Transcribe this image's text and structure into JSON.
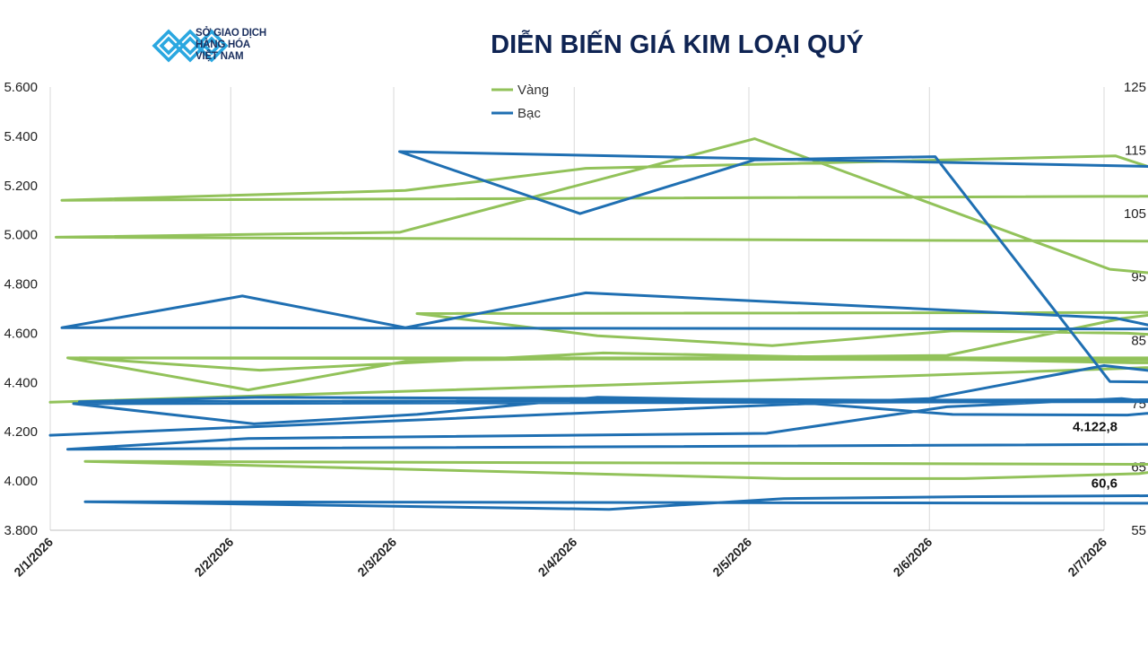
{
  "header": {
    "logo_lines": [
      "SỞ GIAO DỊCH",
      "HÀNG HÓA",
      "VIỆT NAM"
    ],
    "title": "DIỄN BIẾN GIÁ KIM LOẠI QUÝ"
  },
  "colors": {
    "vang": "#92c25a",
    "bac": "#1f6fb2",
    "title": "#0f2453",
    "logo": "#2aa7e0"
  },
  "chart_data": {
    "type": "line",
    "left_axis": {
      "min": 3800,
      "max": 5600,
      "step": 200,
      "tick_labels": [
        "3.800",
        "4.000",
        "4.200",
        "4.400",
        "4.600",
        "4.800",
        "5.000",
        "5.200",
        "5.400",
        "5.600"
      ]
    },
    "right_axis": {
      "min": 55,
      "max": 125,
      "step": 10,
      "tick_labels": [
        "55",
        "65",
        "75",
        "85",
        "95",
        "105",
        "115",
        "125"
      ]
    },
    "x_ticks": [
      "2/1/2026",
      "2/2/2026",
      "2/3/2026",
      "2/4/2026",
      "2/5/2026",
      "2/6/2026",
      "2/7/2026"
    ],
    "grid": "vertical",
    "legend_position": "top-center",
    "series": [
      {
        "name": "Vàng",
        "axis": "left",
        "color": "#92c25a",
        "end_label": "4.122,8",
        "points": [
          [
            "2/1/2026",
            4320
          ],
          [
            "2/6/2026",
            4430
          ],
          [
            "2/8/2026",
            4480
          ],
          [
            "2/10/2026",
            4450
          ],
          [
            "2/15/2026",
            4590
          ],
          [
            "2/17/2026",
            4610
          ],
          [
            "2/19/2026",
            4600
          ],
          [
            "2/21/2026",
            4640
          ],
          [
            "2/25/2026",
            4770
          ],
          [
            "2/28/2026",
            4920
          ],
          [
            "3/1/2026",
            4990
          ],
          [
            "3/3/2026",
            5010
          ],
          [
            "3/5/2026",
            5390
          ],
          [
            "3/7/2026",
            4860
          ],
          [
            "3/10/2026",
            4660
          ],
          [
            "3/11/2026",
            4930
          ],
          [
            "3/12/2026",
            4950
          ],
          [
            "3/13/2026",
            4770
          ],
          [
            "3/14/2026",
            4970
          ],
          [
            "3/18/2026",
            5060
          ],
          [
            "3/19/2026",
            5030
          ],
          [
            "3/20/2026",
            5070
          ],
          [
            "3/21/2026",
            4920
          ],
          [
            "3/22/2026",
            5030
          ],
          [
            "3/25/2026",
            4860
          ],
          [
            "3/26/2026",
            4980
          ],
          [
            "3/27/2026",
            5000
          ],
          [
            "3/28/2026",
            5090
          ],
          [
            "3/31/2026",
            5220
          ],
          [
            "4/1/2026",
            5140
          ],
          [
            "4/3/2026",
            5180
          ],
          [
            "4/4/2026",
            5270
          ],
          [
            "4/7/2026",
            5320
          ],
          [
            "4/8/2026",
            5080
          ],
          [
            "4/9/2026",
            5130
          ],
          [
            "4/10/2026",
            5070
          ],
          [
            "4/11/2026",
            5170
          ],
          [
            "4/14/2026",
            5140
          ],
          [
            "4/15/2026",
            5190
          ],
          [
            "4/16/2026",
            5170
          ],
          [
            "4/18/2026",
            5020
          ],
          [
            "4/22/2026",
            5010
          ],
          [
            "4/24/2026",
            4810
          ],
          [
            "4/26/2026",
            4480
          ],
          [
            "4/29/2026",
            4410
          ],
          [
            "4/30/2026",
            4460
          ],
          [
            "5/1/2026",
            4500
          ],
          [
            "5/2/2026",
            4370
          ],
          [
            "5/3/2026",
            4490
          ],
          [
            "5/6/2026",
            4510
          ],
          [
            "5/7/2026",
            4660
          ],
          [
            "5/8/2026",
            4750
          ],
          [
            "5/9/2026",
            4680
          ],
          [
            "5/13/2026",
            4650
          ],
          [
            "5/14/2026",
            4700
          ],
          [
            "5/15/2026",
            4720
          ],
          [
            "5/16/2026",
            4760
          ],
          [
            "5/17/2026",
            4740
          ],
          [
            "5/20/2026",
            4740
          ],
          [
            "5/21/2026",
            4830
          ],
          [
            "5/22/2026",
            4780
          ],
          [
            "5/23/2026",
            4790
          ],
          [
            "5/24/2026",
            4820
          ],
          [
            "5/27/2026",
            4820
          ],
          [
            "5/28/2026",
            4700
          ],
          [
            "5/29/2026",
            4730
          ],
          [
            "5/30/2026",
            4690
          ],
          [
            "5/31/2026",
            4710
          ],
          [
            "6/3/2026",
            4680
          ],
          [
            "6/4/2026",
            4590
          ],
          [
            "6/5/2026",
            4550
          ],
          [
            "6/6/2026",
            4610
          ],
          [
            "6/7/2026",
            4600
          ],
          [
            "6/9/2026",
            4520
          ],
          [
            "6/10/2026",
            4550
          ],
          [
            "6/11/2026",
            4680
          ],
          [
            "6/12/2026",
            4680
          ],
          [
            "6/13/2026",
            4710
          ],
          [
            "6/16/2026",
            4730
          ],
          [
            "6/18/2026",
            4680
          ],
          [
            "6/19/2026",
            4610
          ],
          [
            "6/20/2026",
            4530
          ],
          [
            "6/23/2026",
            4560
          ],
          [
            "6/24/2026",
            4470
          ],
          [
            "6/25/2026",
            4540
          ],
          [
            "6/26/2026",
            4540
          ],
          [
            "6/27/2026",
            4500
          ],
          [
            "7/1/2026",
            4500
          ],
          [
            "7/2/2026",
            4450
          ],
          [
            "7/4/2026",
            4520
          ],
          [
            "7/7/2026",
            4480
          ],
          [
            "7/8/2026",
            4480
          ],
          [
            "7/9/2026",
            4420
          ],
          [
            "7/10/2026",
            4470
          ],
          [
            "7/11/2026",
            4330
          ],
          [
            "7/14/2026",
            4330
          ],
          [
            "7/15/2026",
            4260
          ],
          [
            "7/16/2026",
            4060
          ],
          [
            "7/17/2026",
            4200
          ],
          [
            "7/18/2026",
            4210
          ],
          [
            "7/22/2026",
            4320
          ],
          [
            "7/23/2026",
            4250
          ],
          [
            "7/24/2026",
            4220
          ],
          [
            "7/25/2026",
            4150
          ],
          [
            "7/28/2026",
            4190
          ],
          [
            "7/30/2026",
            3990
          ],
          [
            "7/31/2026",
            4020
          ],
          [
            "8/1/2026",
            4080
          ],
          [
            "8/5/2026",
            4010
          ],
          [
            "8/6/2026",
            4010
          ],
          [
            "8/7/2026",
            4030
          ],
          [
            "8/8/2026",
            4122.8
          ]
        ]
      },
      {
        "name": "Bạc",
        "axis": "right",
        "color": "#1f6fb2",
        "end_label": "60,6",
        "points": [
          [
            "2/1/2026",
            70
          ],
          [
            "2/6/2026",
            75.8
          ],
          [
            "2/7/2026",
            81
          ],
          [
            "2/9/2026",
            74.8
          ],
          [
            "2/10/2026",
            79
          ],
          [
            "2/15/2026",
            84.8
          ],
          [
            "2/16/2026",
            85.5
          ],
          [
            "2/17/2026",
            90.5
          ],
          [
            "2/18/2026",
            91.5
          ],
          [
            "2/19/2026",
            87.5
          ],
          [
            "2/24/2026",
            93.5
          ],
          [
            "2/25/2026",
            92
          ],
          [
            "2/28/2026",
            101
          ],
          [
            "3/3/2026",
            114.8
          ],
          [
            "3/4/2026",
            105
          ],
          [
            "3/5/2026",
            113.5
          ],
          [
            "3/6/2026",
            114
          ],
          [
            "3/7/2026",
            78.5
          ],
          [
            "3/10/2026",
            77.5
          ],
          [
            "3/11/2026",
            82.5
          ],
          [
            "3/12/2026",
            83.5
          ],
          [
            "3/13/2026",
            76.5
          ],
          [
            "3/14/2026",
            76.8
          ],
          [
            "3/18/2026",
            81.5
          ],
          [
            "3/19/2026",
            79.5
          ],
          [
            "3/20/2026",
            83.5
          ],
          [
            "3/21/2026",
            75.5
          ],
          [
            "3/22/2026",
            78
          ],
          [
            "3/25/2026",
            74
          ],
          [
            "3/26/2026",
            77.5
          ],
          [
            "3/27/2026",
            77.5
          ],
          [
            "3/28/2026",
            82
          ],
          [
            "3/31/2026",
            86
          ],
          [
            "4/1/2026",
            87
          ],
          [
            "4/2/2026",
            92
          ],
          [
            "4/3/2026",
            87
          ],
          [
            "4/4/2026",
            92.5
          ],
          [
            "4/7/2026",
            88.5
          ],
          [
            "4/8/2026",
            82.5
          ],
          [
            "4/9/2026",
            82.3
          ],
          [
            "4/10/2026",
            81.5
          ],
          [
            "4/11/2026",
            83.8
          ],
          [
            "4/14/2026",
            84
          ],
          [
            "4/15/2026",
            89
          ],
          [
            "4/16/2026",
            85
          ],
          [
            "4/17/2026",
            84.8
          ],
          [
            "4/18/2026",
            80.5
          ],
          [
            "4/22/2026",
            79.8
          ],
          [
            "4/23/2026",
            77.5
          ],
          [
            "4/24/2026",
            71.5
          ],
          [
            "4/25/2026",
            69.3
          ],
          [
            "4/28/2026",
            69
          ],
          [
            "4/29/2026",
            69.2
          ],
          [
            "4/30/2026",
            71.5
          ],
          [
            "5/1/2026",
            67.8
          ],
          [
            "5/2/2026",
            69.5
          ],
          [
            "5/5/2026",
            70.3
          ],
          [
            "5/6/2026",
            74.5
          ],
          [
            "5/7/2026",
            75.8
          ],
          [
            "5/8/2026",
            72.8
          ],
          [
            "5/12/2026",
            72.7
          ],
          [
            "5/13/2026",
            72
          ],
          [
            "5/14/2026",
            75
          ],
          [
            "5/15/2026",
            76
          ],
          [
            "5/18/2026",
            75.3
          ],
          [
            "5/19/2026",
            79.5
          ],
          [
            "5/20/2026",
            79.5
          ],
          [
            "5/21/2026",
            78.5
          ],
          [
            "5/22/2026",
            81.5
          ],
          [
            "5/25/2026",
            79.8
          ],
          [
            "5/26/2026",
            76.3
          ],
          [
            "5/27/2026",
            77.8
          ],
          [
            "5/28/2026",
            75.5
          ],
          [
            "5/29/2026",
            76.5
          ],
          [
            "6/1/2026",
            75
          ],
          [
            "6/2/2026",
            71.8
          ],
          [
            "6/3/2026",
            73.3
          ],
          [
            "6/4/2026",
            76
          ],
          [
            "6/5/2026",
            75.5
          ],
          [
            "6/6/2026",
            73.3
          ],
          [
            "6/7/2026",
            73.2
          ],
          [
            "6/10/2026",
            80.3
          ],
          [
            "6/11/2026",
            80.8
          ],
          [
            "6/14/2026",
            85.3
          ],
          [
            "6/15/2026",
            85.2
          ],
          [
            "6/16/2026",
            89
          ],
          [
            "6/18/2026",
            78
          ],
          [
            "6/21/2026",
            77.8
          ],
          [
            "6/22/2026",
            75.3
          ],
          [
            "6/23/2026",
            76.5
          ],
          [
            "6/24/2026",
            77
          ],
          [
            "6/25/2026",
            76.2
          ],
          [
            "6/30/2026",
            76.8
          ],
          [
            "7/1/2026",
            75.3
          ],
          [
            "7/2/2026",
            76
          ],
          [
            "7/4/2026",
            75.8
          ],
          [
            "7/7/2026",
            75.3
          ],
          [
            "7/8/2026",
            75.5
          ],
          [
            "7/9/2026",
            73.5
          ],
          [
            "7/10/2026",
            73.8
          ],
          [
            "7/11/2026",
            68.8
          ],
          [
            "7/14/2026",
            68.3
          ],
          [
            "7/15/2026",
            64.8
          ],
          [
            "7/17/2026",
            63.5
          ],
          [
            "7/18/2026",
            67.5
          ],
          [
            "7/21/2026",
            70
          ],
          [
            "7/22/2026",
            70
          ],
          [
            "7/23/2026",
            70.5
          ],
          [
            "7/24/2026",
            66.5
          ],
          [
            "7/28/2026",
            65.5
          ],
          [
            "7/30/2026",
            58
          ],
          [
            "7/31/2026",
            58.3
          ],
          [
            "8/1/2026",
            59.5
          ],
          [
            "8/4/2026",
            58.3
          ],
          [
            "8/5/2026",
            60
          ],
          [
            "8/6/2026",
            60.3
          ],
          [
            "8/8/2026",
            60.6
          ]
        ]
      }
    ]
  }
}
